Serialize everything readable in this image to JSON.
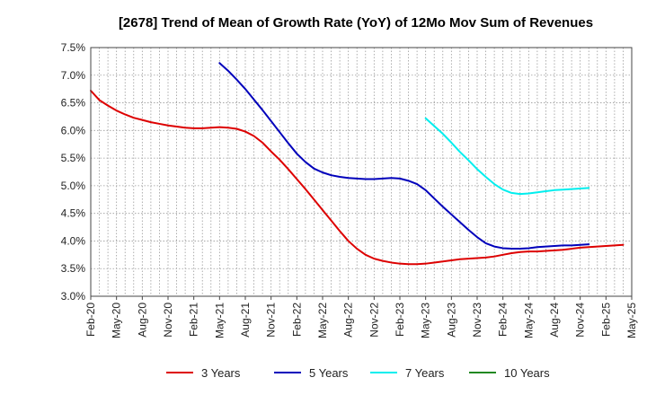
{
  "chart_data": {
    "type": "line",
    "title": "[2678]  Trend of Mean of Growth Rate (YoY) of 12Mo Mov Sum of Revenues",
    "xlabel": "",
    "ylabel": "",
    "ylim": [
      3.0,
      7.5
    ],
    "yticks": [
      "3.0%",
      "3.5%",
      "4.0%",
      "4.5%",
      "5.0%",
      "5.5%",
      "6.0%",
      "6.5%",
      "7.0%",
      "7.5%"
    ],
    "x_tick_labels": [
      "Feb-20",
      "May-20",
      "Aug-20",
      "Nov-20",
      "Feb-21",
      "May-21",
      "Aug-21",
      "Nov-21",
      "Feb-22",
      "May-22",
      "Aug-22",
      "Nov-22",
      "Feb-23",
      "May-23",
      "Aug-23",
      "Nov-23",
      "Feb-24",
      "May-24",
      "Aug-24",
      "Nov-24",
      "Feb-25",
      "May-25"
    ],
    "x_start": "Feb-20",
    "x_months": 63,
    "grid": true,
    "legend_position": "bottom",
    "series": [
      {
        "name": "3 Years",
        "color": "#dd0000",
        "points": [
          [
            0,
            6.72
          ],
          [
            1,
            6.55
          ],
          [
            2,
            6.45
          ],
          [
            3,
            6.36
          ],
          [
            4,
            6.29
          ],
          [
            5,
            6.23
          ],
          [
            6,
            6.19
          ],
          [
            7,
            6.15
          ],
          [
            8,
            6.12
          ],
          [
            9,
            6.09
          ],
          [
            10,
            6.07
          ],
          [
            11,
            6.05
          ],
          [
            12,
            6.04
          ],
          [
            13,
            6.04
          ],
          [
            14,
            6.05
          ],
          [
            15,
            6.06
          ],
          [
            16,
            6.05
          ],
          [
            17,
            6.03
          ],
          [
            18,
            5.98
          ],
          [
            19,
            5.9
          ],
          [
            20,
            5.78
          ],
          [
            21,
            5.62
          ],
          [
            22,
            5.47
          ],
          [
            23,
            5.3
          ],
          [
            24,
            5.12
          ],
          [
            25,
            4.94
          ],
          [
            26,
            4.75
          ],
          [
            27,
            4.56
          ],
          [
            28,
            4.37
          ],
          [
            29,
            4.18
          ],
          [
            30,
            4.0
          ],
          [
            31,
            3.86
          ],
          [
            32,
            3.75
          ],
          [
            33,
            3.68
          ],
          [
            34,
            3.64
          ],
          [
            35,
            3.61
          ],
          [
            36,
            3.59
          ],
          [
            37,
            3.58
          ],
          [
            38,
            3.58
          ],
          [
            39,
            3.59
          ],
          [
            40,
            3.61
          ],
          [
            41,
            3.63
          ],
          [
            42,
            3.65
          ],
          [
            43,
            3.67
          ],
          [
            44,
            3.68
          ],
          [
            45,
            3.69
          ],
          [
            46,
            3.7
          ],
          [
            47,
            3.72
          ],
          [
            48,
            3.75
          ],
          [
            49,
            3.78
          ],
          [
            50,
            3.8
          ],
          [
            51,
            3.81
          ],
          [
            52,
            3.81
          ],
          [
            53,
            3.82
          ],
          [
            54,
            3.83
          ],
          [
            55,
            3.84
          ],
          [
            56,
            3.86
          ],
          [
            57,
            3.88
          ],
          [
            58,
            3.89
          ],
          [
            59,
            3.9
          ],
          [
            60,
            3.91
          ],
          [
            61,
            3.92
          ],
          [
            62,
            3.93
          ]
        ]
      },
      {
        "name": "5 Years",
        "color": "#0000bb",
        "points": [
          [
            15,
            7.22
          ],
          [
            16,
            7.08
          ],
          [
            17,
            6.92
          ],
          [
            18,
            6.75
          ],
          [
            19,
            6.56
          ],
          [
            20,
            6.37
          ],
          [
            21,
            6.17
          ],
          [
            22,
            5.97
          ],
          [
            23,
            5.77
          ],
          [
            24,
            5.58
          ],
          [
            25,
            5.43
          ],
          [
            26,
            5.31
          ],
          [
            27,
            5.24
          ],
          [
            28,
            5.19
          ],
          [
            29,
            5.16
          ],
          [
            30,
            5.14
          ],
          [
            31,
            5.13
          ],
          [
            32,
            5.12
          ],
          [
            33,
            5.12
          ],
          [
            34,
            5.13
          ],
          [
            35,
            5.14
          ],
          [
            36,
            5.13
          ],
          [
            37,
            5.09
          ],
          [
            38,
            5.03
          ],
          [
            39,
            4.92
          ],
          [
            40,
            4.77
          ],
          [
            41,
            4.62
          ],
          [
            42,
            4.48
          ],
          [
            43,
            4.34
          ],
          [
            44,
            4.2
          ],
          [
            45,
            4.07
          ],
          [
            46,
            3.96
          ],
          [
            47,
            3.9
          ],
          [
            48,
            3.87
          ],
          [
            49,
            3.86
          ],
          [
            50,
            3.86
          ],
          [
            51,
            3.87
          ],
          [
            52,
            3.89
          ],
          [
            53,
            3.9
          ],
          [
            54,
            3.91
          ],
          [
            55,
            3.92
          ],
          [
            56,
            3.92
          ],
          [
            57,
            3.93
          ],
          [
            58,
            3.94
          ]
        ]
      },
      {
        "name": "7 Years",
        "color": "#00eeee",
        "points": [
          [
            39,
            6.22
          ],
          [
            40,
            6.08
          ],
          [
            41,
            5.94
          ],
          [
            42,
            5.78
          ],
          [
            43,
            5.61
          ],
          [
            44,
            5.46
          ],
          [
            45,
            5.3
          ],
          [
            46,
            5.16
          ],
          [
            47,
            5.03
          ],
          [
            48,
            4.93
          ],
          [
            49,
            4.87
          ],
          [
            50,
            4.85
          ],
          [
            51,
            4.86
          ],
          [
            52,
            4.88
          ],
          [
            53,
            4.9
          ],
          [
            54,
            4.92
          ],
          [
            55,
            4.93
          ],
          [
            56,
            4.94
          ],
          [
            57,
            4.95
          ],
          [
            58,
            4.96
          ]
        ]
      },
      {
        "name": "10 Years",
        "color": "#228822",
        "points": []
      }
    ]
  }
}
